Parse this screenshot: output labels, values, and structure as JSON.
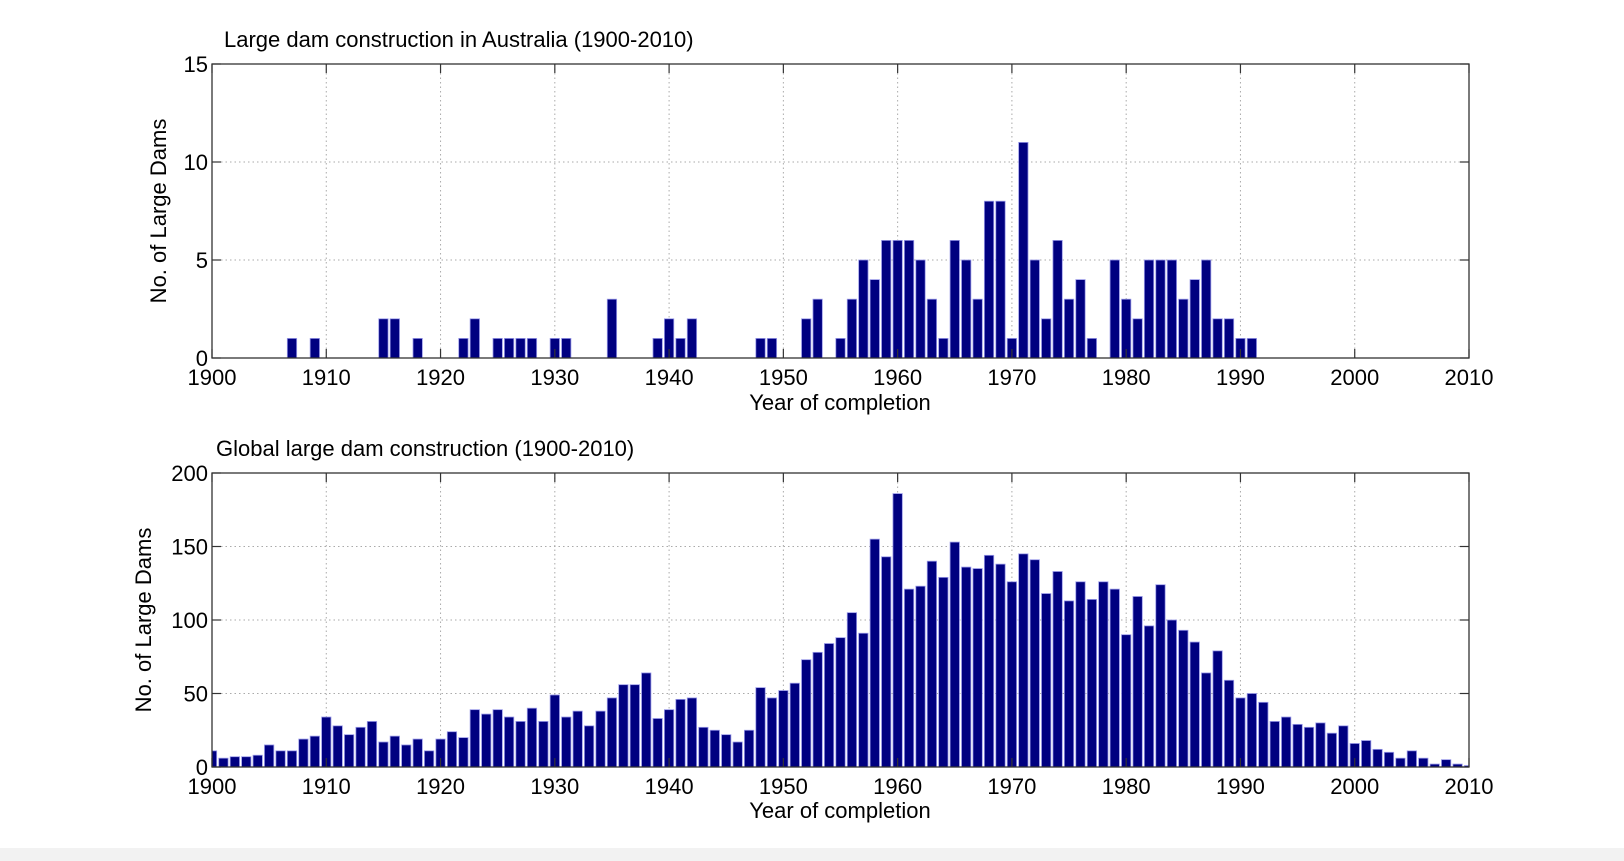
{
  "chart_data": [
    {
      "type": "bar",
      "title": "Large dam construction in Australia (1900-2010)",
      "xlabel": "Year of completion",
      "ylabel": "No. of Large Dams",
      "xlim": [
        1900,
        2010
      ],
      "ylim": [
        0,
        15
      ],
      "xticks": [
        "1900",
        "1910",
        "1920",
        "1930",
        "1940",
        "1950",
        "1960",
        "1970",
        "1980",
        "1990",
        "2000",
        "2010"
      ],
      "yticks": [
        "0",
        "5",
        "10",
        "15"
      ],
      "grid": true,
      "bar_color": "#000080",
      "x": [
        1907,
        1909,
        1915,
        1916,
        1918,
        1922,
        1923,
        1925,
        1926,
        1927,
        1928,
        1930,
        1931,
        1935,
        1939,
        1940,
        1941,
        1942,
        1948,
        1949,
        1952,
        1953,
        1955,
        1956,
        1957,
        1958,
        1959,
        1960,
        1961,
        1962,
        1963,
        1964,
        1965,
        1966,
        1967,
        1968,
        1969,
        1970,
        1971,
        1972,
        1973,
        1974,
        1975,
        1976,
        1977,
        1979,
        1980,
        1981,
        1982,
        1983,
        1984,
        1985,
        1986,
        1987,
        1988,
        1989,
        1990,
        1991
      ],
      "values": [
        1,
        1,
        2,
        2,
        1,
        1,
        2,
        1,
        1,
        1,
        1,
        1,
        1,
        3,
        1,
        2,
        1,
        2,
        1,
        1,
        2,
        3,
        1,
        3,
        5,
        4,
        6,
        6,
        6,
        5,
        3,
        1,
        6,
        5,
        3,
        8,
        8,
        1,
        11,
        5,
        2,
        6,
        3,
        4,
        1,
        5,
        3,
        2,
        5,
        5,
        5,
        3,
        4,
        5,
        2,
        2,
        1,
        1
      ]
    },
    {
      "type": "bar",
      "title": "Global large dam construction (1900-2010)",
      "xlabel": "Year of completion",
      "ylabel": "No. of Large Dams",
      "xlim": [
        1900,
        2010
      ],
      "ylim": [
        0,
        200
      ],
      "xticks": [
        "1900",
        "1910",
        "1920",
        "1930",
        "1940",
        "1950",
        "1960",
        "1970",
        "1980",
        "1990",
        "2000",
        "2010"
      ],
      "yticks": [
        "0",
        "50",
        "100",
        "150",
        "200"
      ],
      "grid": true,
      "bar_color": "#000080",
      "x": [
        1900,
        1901,
        1902,
        1903,
        1904,
        1905,
        1906,
        1907,
        1908,
        1909,
        1910,
        1911,
        1912,
        1913,
        1914,
        1915,
        1916,
        1917,
        1918,
        1919,
        1920,
        1921,
        1922,
        1923,
        1924,
        1925,
        1926,
        1927,
        1928,
        1929,
        1930,
        1931,
        1932,
        1933,
        1934,
        1935,
        1936,
        1937,
        1938,
        1939,
        1940,
        1941,
        1942,
        1943,
        1944,
        1945,
        1946,
        1947,
        1948,
        1949,
        1950,
        1951,
        1952,
        1953,
        1954,
        1955,
        1956,
        1957,
        1958,
        1959,
        1960,
        1961,
        1962,
        1963,
        1964,
        1965,
        1966,
        1967,
        1968,
        1969,
        1970,
        1971,
        1972,
        1973,
        1974,
        1975,
        1976,
        1977,
        1978,
        1979,
        1980,
        1981,
        1982,
        1983,
        1984,
        1985,
        1986,
        1987,
        1988,
        1989,
        1990,
        1991,
        1992,
        1993,
        1994,
        1995,
        1996,
        1997,
        1998,
        1999,
        2000,
        2001,
        2002,
        2003,
        2004,
        2005,
        2006,
        2007,
        2008,
        2009,
        2010
      ],
      "values": [
        11,
        6,
        7,
        7,
        8,
        15,
        11,
        11,
        19,
        21,
        34,
        28,
        22,
        27,
        31,
        17,
        21,
        15,
        19,
        11,
        19,
        24,
        20,
        39,
        36,
        39,
        34,
        31,
        40,
        31,
        49,
        34,
        38,
        28,
        38,
        47,
        56,
        56,
        64,
        33,
        39,
        46,
        47,
        27,
        25,
        22,
        17,
        25,
        54,
        47,
        52,
        57,
        73,
        78,
        84,
        88,
        105,
        91,
        155,
        143,
        186,
        121,
        123,
        140,
        129,
        153,
        136,
        135,
        144,
        138,
        126,
        145,
        141,
        118,
        133,
        113,
        126,
        114,
        126,
        121,
        90,
        116,
        96,
        124,
        100,
        93,
        85,
        64,
        79,
        59,
        47,
        50,
        44,
        31,
        34,
        29,
        27,
        30,
        23,
        28,
        16,
        18,
        12,
        10,
        6,
        11,
        6,
        2,
        5,
        2,
        1
      ]
    }
  ]
}
